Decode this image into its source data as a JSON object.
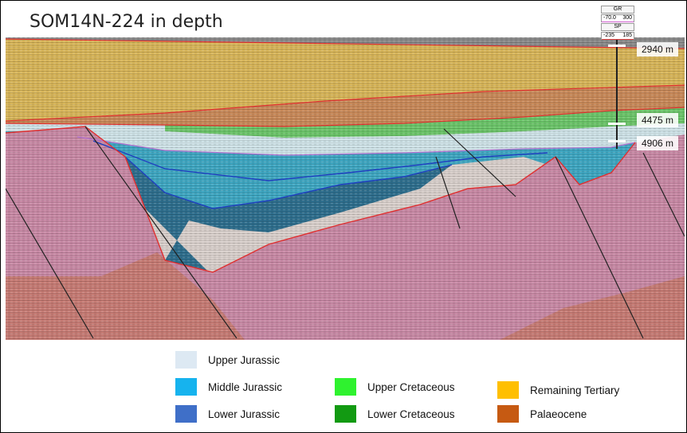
{
  "title": "SOM14N-224 in depth",
  "well_log": {
    "gr_label": "GR",
    "gr_min": "-70.0",
    "gr_max": "300",
    "sp_label": "SP",
    "sp_min": "-235",
    "sp_max": "185"
  },
  "depth_markers": [
    "2940 m",
    "4475 m",
    "4906 m"
  ],
  "legend": [
    {
      "label": "Upper Jurassic",
      "color": "#dde9f3"
    },
    {
      "label": "Middle Jurassic",
      "color": "#16b3ee"
    },
    {
      "label": "Lower Jurassic",
      "color": "#3f6fc8"
    },
    {
      "label": "Upper Cretaceous",
      "color": "#2ff22f"
    },
    {
      "label": "Lower Cretaceous",
      "color": "#129a12"
    },
    {
      "label": "Remaining Tertiary",
      "color": "#ffbf00"
    },
    {
      "label": "Palaeocene",
      "color": "#c65a12"
    }
  ],
  "colors": {
    "basement": "#c98aa6",
    "deep_basement": "#c77c75",
    "tertiary_fill": "#d8b65a",
    "palaeocene_fill": "#c98a5a",
    "horizon_line": "#e03030",
    "fault_line": "#222222"
  }
}
